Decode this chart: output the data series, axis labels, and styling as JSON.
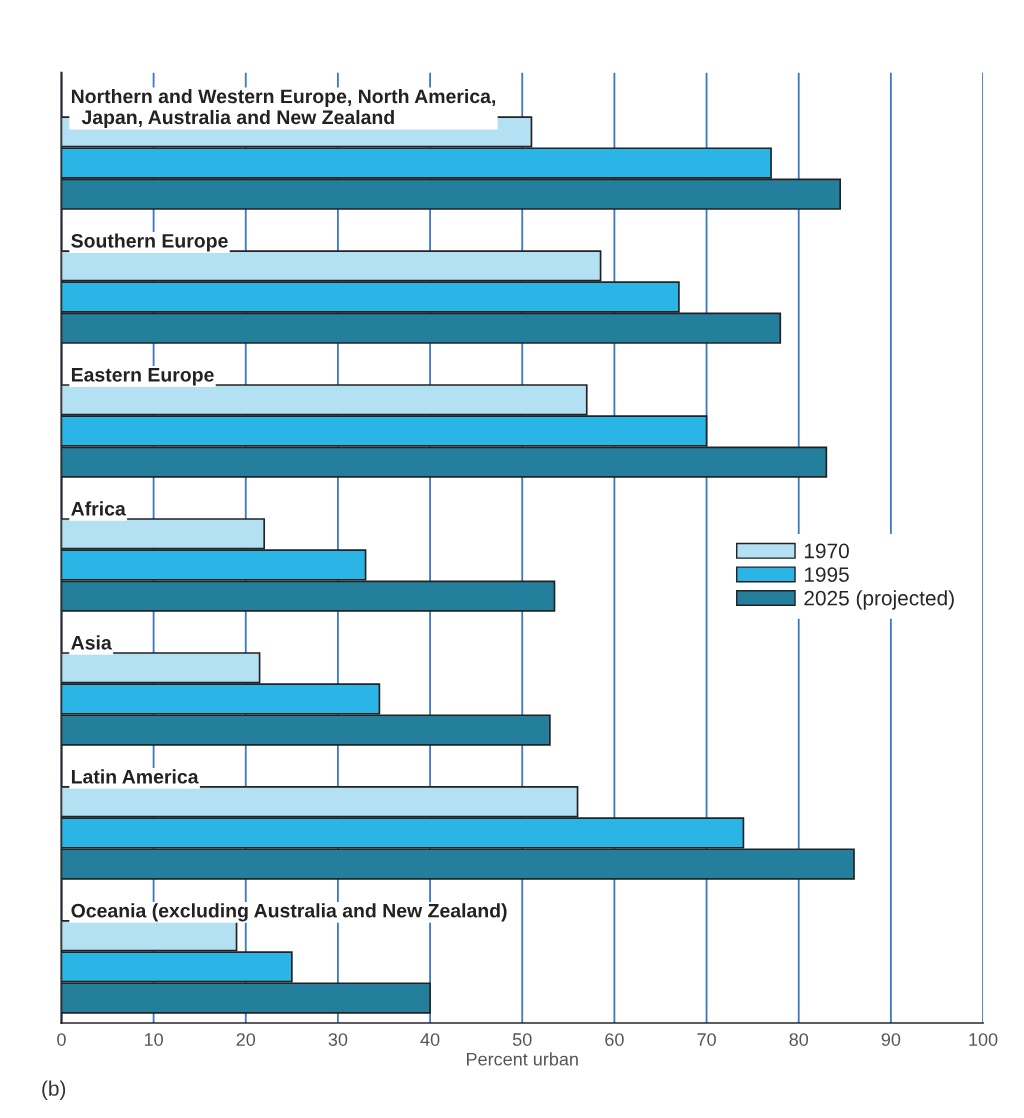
{
  "chart_data": {
    "type": "bar",
    "orientation": "horizontal",
    "xlabel": "Percent urban",
    "categories": [
      "Northern and Western Europe, North America,\n  Japan, Australia and New Zealand",
      "Southern Europe",
      "Eastern Europe",
      "Africa",
      "Asia",
      "Latin America",
      "Oceania (excluding Australia and New Zealand)"
    ],
    "series": [
      {
        "name": "1970",
        "color": "#b3e0f2",
        "values": [
          51,
          58.5,
          57,
          22,
          21.5,
          56,
          19
        ]
      },
      {
        "name": "1995",
        "color": "#2ab5e6",
        "values": [
          77,
          67,
          70,
          33,
          34.5,
          74,
          25
        ]
      },
      {
        "name": "2025 (projected)",
        "color": "#237f9c",
        "values": [
          84.5,
          78,
          83,
          53.5,
          53,
          86,
          40
        ]
      }
    ],
    "xlim": [
      0,
      100
    ],
    "xticks": [
      0,
      10,
      20,
      30,
      40,
      50,
      60,
      70,
      80,
      90,
      100
    ],
    "grid": "x",
    "legend": "right",
    "annotations": [
      "(b)"
    ]
  }
}
